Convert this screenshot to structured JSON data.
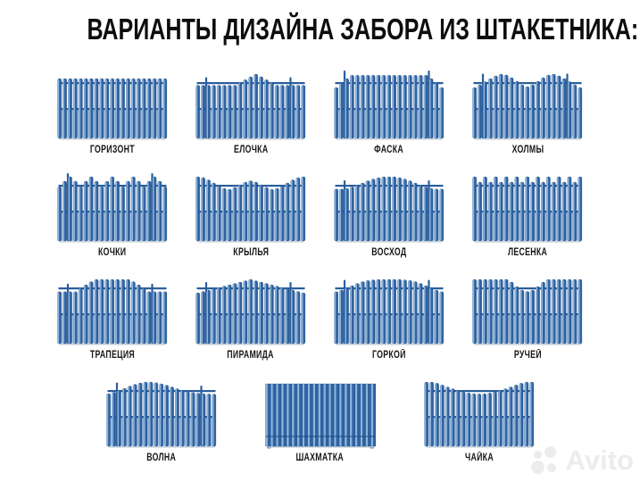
{
  "title": "ВАРИАНТЫ ДИЗАЙНА ЗАБОРА ИЗ ШТАКЕТНИКА:",
  "watermark": {
    "text": "Avito"
  },
  "colors": {
    "picket_dark": "#2F64A3",
    "picket_light": "#8FB4DC",
    "picket_edge": "#1D4A82",
    "picket_back": "#B7CCE6",
    "rail": "#2A5D9C",
    "shadow": "#C9D3DC",
    "text": "#161616",
    "watermark": "#ECECEC"
  },
  "rows": [
    {
      "items": [
        {
          "label": "ГОРИЗОНТ",
          "shape": "flat",
          "posts": false,
          "solid": false,
          "profile": [
            0.8,
            0.8,
            0.8,
            0.8,
            0.8,
            0.8,
            0.8,
            0.8,
            0.8,
            0.8,
            0.8,
            0.8,
            0.8,
            0.8,
            0.8,
            0.8,
            0.8,
            0.8,
            0.8,
            0.8,
            0.8
          ]
        },
        {
          "label": "ЕЛОЧКА",
          "shape": "center-peak",
          "posts": true,
          "solid": false,
          "profile": [
            0.5,
            0.5,
            0.5,
            0.5,
            0.5,
            0.5,
            0.5,
            0.5,
            0.62,
            0.75,
            0.88,
            1,
            0.88,
            0.75,
            0.62,
            0.5,
            0.5,
            0.5,
            0.5,
            0.5,
            0.5
          ]
        },
        {
          "label": "ФАСКА",
          "shape": "chamfer",
          "posts": true,
          "solid": false,
          "profile": [
            0.4,
            0.6,
            0.8,
            0.95,
            0.95,
            0.95,
            0.95,
            0.95,
            0.95,
            0.95,
            0.95,
            0.95,
            0.95,
            0.95,
            0.95,
            0.95,
            0.95,
            0.95,
            0.8,
            0.6,
            0.4
          ]
        },
        {
          "label": "ХОЛМЫ",
          "shape": "two-hills",
          "posts": true,
          "solid": false,
          "profile": [
            0.4,
            0.52,
            0.66,
            0.8,
            0.92,
            1,
            0.96,
            0.84,
            0.68,
            0.52,
            0.44,
            0.52,
            0.68,
            0.84,
            0.96,
            1,
            0.92,
            0.8,
            0.66,
            0.52,
            0.4
          ]
        }
      ]
    },
    {
      "items": [
        {
          "label": "КОЧКИ",
          "shape": "small-bumps",
          "posts": true,
          "solid": false,
          "profile": [
            0.55,
            0.8,
            1,
            0.8,
            0.55,
            0.8,
            1,
            0.8,
            0.55,
            0.8,
            1,
            0.8,
            0.55,
            0.8,
            1,
            0.8,
            0.55,
            0.8,
            1,
            0.8,
            0.55
          ]
        },
        {
          "label": "КРЫЛЬЯ",
          "shape": "wings",
          "posts": false,
          "solid": false,
          "profile": [
            1,
            0.96,
            0.86,
            0.72,
            0.58,
            0.48,
            0.44,
            0.52,
            0.64,
            0.76,
            0.82,
            0.76,
            0.64,
            0.52,
            0.44,
            0.48,
            0.58,
            0.72,
            0.86,
            0.96,
            1
          ]
        },
        {
          "label": "ВОСХОД",
          "shape": "sunrise-dome",
          "posts": true,
          "solid": false,
          "profile": [
            0.45,
            0.45,
            0.48,
            0.54,
            0.62,
            0.72,
            0.82,
            0.9,
            0.96,
            1,
            1,
            1,
            0.96,
            0.9,
            0.82,
            0.72,
            0.62,
            0.54,
            0.48,
            0.45,
            0.45
          ]
        },
        {
          "label": "ЛЕСЕНКА",
          "shape": "ladder",
          "posts": false,
          "solid": false,
          "profile": [
            1,
            0.76,
            1,
            0.76,
            1,
            0.76,
            1,
            0.76,
            1,
            0.76,
            1,
            0.76,
            1,
            0.76,
            1,
            0.76,
            1,
            0.76,
            1,
            0.76,
            1
          ]
        }
      ]
    },
    {
      "items": [
        {
          "label": "ТРАПЕЦИЯ",
          "shape": "trapezoid",
          "posts": true,
          "solid": false,
          "profile": [
            0.45,
            0.45,
            0.45,
            0.45,
            0.6,
            0.76,
            0.9,
            1,
            1,
            1,
            1,
            1,
            1,
            1,
            0.9,
            0.76,
            0.6,
            0.45,
            0.45,
            0.45,
            0.45
          ]
        },
        {
          "label": "ПИРАМИДА",
          "shape": "pyramid",
          "posts": true,
          "solid": false,
          "profile": [
            0.4,
            0.46,
            0.52,
            0.58,
            0.64,
            0.7,
            0.76,
            0.82,
            0.88,
            0.94,
            1,
            0.94,
            0.88,
            0.82,
            0.76,
            0.7,
            0.64,
            0.58,
            0.52,
            0.46,
            0.4
          ]
        },
        {
          "label": "ГОРКОЙ",
          "shape": "hill-dome",
          "posts": true,
          "solid": false,
          "profile": [
            0.45,
            0.52,
            0.62,
            0.72,
            0.82,
            0.9,
            0.95,
            0.98,
            1,
            1,
            1,
            1,
            1,
            0.98,
            0.95,
            0.9,
            0.82,
            0.72,
            0.62,
            0.52,
            0.45
          ]
        },
        {
          "label": "РУЧЕЙ",
          "shape": "center-dip",
          "posts": false,
          "solid": false,
          "profile": [
            1,
            1,
            1,
            1,
            1,
            1,
            1,
            0.88,
            0.68,
            0.52,
            0.46,
            0.52,
            0.68,
            0.88,
            1,
            1,
            1,
            1,
            1,
            1,
            1
          ]
        }
      ]
    },
    {
      "items": [
        {
          "label": "ВОЛНА",
          "shape": "wave",
          "posts": true,
          "solid": false,
          "profile": [
            0.48,
            0.54,
            0.62,
            0.72,
            0.82,
            0.9,
            0.96,
            1,
            1,
            0.97,
            0.92,
            0.86,
            0.78,
            0.7,
            0.63,
            0.57,
            0.53,
            0.5,
            0.48,
            0.47,
            0.46
          ]
        },
        {
          "label": "ШАХМАТКА",
          "shape": "solid-checker",
          "posts": false,
          "solid": true,
          "profile": [
            0.9,
            0.9,
            0.9,
            0.9,
            0.9,
            0.9,
            0.9,
            0.9,
            0.9,
            0.9,
            0.9,
            0.9,
            0.9,
            0.9,
            0.9,
            0.9,
            0.9,
            0.9,
            0.9,
            0.9,
            0.9
          ]
        },
        {
          "label": "ЧАЙКА",
          "shape": "gull",
          "posts": false,
          "solid": false,
          "profile": [
            1,
            1,
            0.95,
            0.87,
            0.78,
            0.7,
            0.62,
            0.56,
            0.51,
            0.48,
            0.47,
            0.48,
            0.51,
            0.56,
            0.62,
            0.7,
            0.78,
            0.87,
            0.95,
            1,
            1
          ]
        }
      ]
    }
  ]
}
